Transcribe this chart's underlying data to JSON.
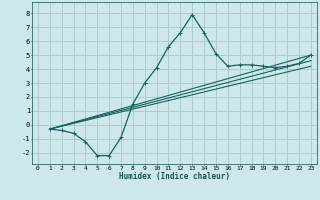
{
  "xlabel": "Humidex (Indice chaleur)",
  "ylabel": "",
  "bg_color": "#cce8ec",
  "grid_color": "#aacccc",
  "line_color": "#1a6060",
  "xlim": [
    -0.5,
    23.5
  ],
  "ylim": [
    -2.8,
    8.8
  ],
  "xticks": [
    0,
    1,
    2,
    3,
    4,
    5,
    6,
    7,
    8,
    9,
    10,
    11,
    12,
    13,
    14,
    15,
    16,
    17,
    18,
    19,
    20,
    21,
    22,
    23
  ],
  "yticks": [
    -2,
    -1,
    0,
    1,
    2,
    3,
    4,
    5,
    6,
    7,
    8
  ],
  "series_main": {
    "x": [
      1,
      2,
      3,
      4,
      5,
      6,
      7,
      8,
      9,
      10,
      11,
      12,
      13,
      14,
      15,
      16,
      17,
      18,
      19,
      20,
      21,
      22,
      23
    ],
    "y": [
      -0.3,
      -0.4,
      -0.6,
      -1.2,
      -2.2,
      -2.2,
      -0.9,
      1.5,
      3.0,
      4.1,
      5.6,
      6.6,
      7.9,
      6.6,
      5.1,
      4.2,
      4.3,
      4.3,
      4.2,
      4.1,
      4.2,
      4.4,
      5.0
    ]
  },
  "series_lines": [
    {
      "x": [
        1,
        23
      ],
      "y": [
        -0.3,
        5.0
      ]
    },
    {
      "x": [
        1,
        23
      ],
      "y": [
        -0.3,
        4.6
      ]
    },
    {
      "x": [
        1,
        23
      ],
      "y": [
        -0.3,
        4.2
      ]
    }
  ]
}
